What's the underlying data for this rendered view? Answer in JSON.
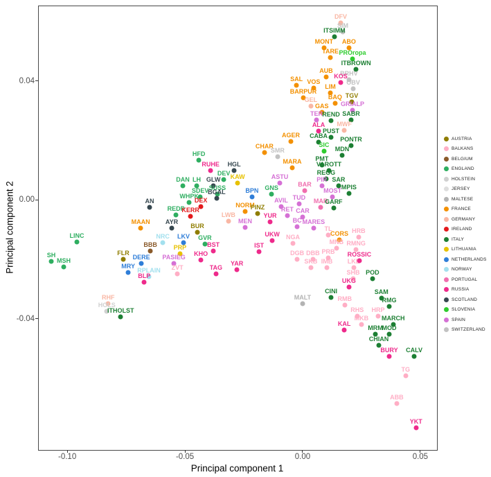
{
  "figure": {
    "xlabel": "Principal component 1",
    "ylabel": "Principal component 2",
    "xlim": [
      -0.1124,
      0.0568
    ],
    "ylim": [
      -0.0839,
      0.0654
    ],
    "x_ticks": [
      -0.1,
      -0.05,
      0.0,
      0.05
    ],
    "y_ticks": [
      -0.04,
      0.0,
      0.04
    ]
  },
  "legend": {
    "items": [
      {
        "label": "AUSTRIA",
        "color": "#8f7d00"
      },
      {
        "label": "BALKANS",
        "color": "#ffaec5"
      },
      {
        "label": "BELGIUM",
        "color": "#8a5a2a"
      },
      {
        "label": "ENGLAND",
        "color": "#2eae60"
      },
      {
        "label": "HOLSTEIN",
        "color": "#d0d0d0"
      },
      {
        "label": "JERSEY",
        "color": "#dedede"
      },
      {
        "label": "MALTESE",
        "color": "#b3b3b3"
      },
      {
        "label": "FRANCE",
        "color": "#f39000"
      },
      {
        "label": "GERMANY",
        "color": "#f9b7a4"
      },
      {
        "label": "IRELAND",
        "color": "#e3191c"
      },
      {
        "label": "ITALY",
        "color": "#1c7f33"
      },
      {
        "label": "LITHUANIA",
        "color": "#e7c100"
      },
      {
        "label": "NETHERLANDS",
        "color": "#2f7ed8"
      },
      {
        "label": "NORWAY",
        "color": "#a3e0ee"
      },
      {
        "label": "PORTUGAL",
        "color": "#f06eae"
      },
      {
        "label": "RUSSIA",
        "color": "#ee2a8b"
      },
      {
        "label": "SCOTLAND",
        "color": "#36474f"
      },
      {
        "label": "SLOVENIA",
        "color": "#2ecc2e"
      },
      {
        "label": "SPAIN",
        "color": "#d570d5"
      },
      {
        "label": "SWITZERLAND",
        "color": "#c2c2c2"
      }
    ]
  },
  "chart_data": {
    "type": "scatter",
    "title": "",
    "xlabel": "Principal component 1",
    "ylabel": "Principal component 2",
    "xlim": [
      -0.1124,
      0.0568
    ],
    "ylim": [
      -0.0839,
      0.0654
    ],
    "grid": false,
    "legend_position": "right",
    "groups": {
      "AUSTRIA": "#8f7d00",
      "BALKANS": "#ffaec5",
      "BELGIUM": "#8a5a2a",
      "ENGLAND": "#2eae60",
      "HOLSTEIN": "#d0d0d0",
      "JERSEY": "#dedede",
      "MALTESE": "#b3b3b3",
      "FRANCE": "#f39000",
      "GERMANY": "#f9b7a4",
      "IRELAND": "#e3191c",
      "ITALY": "#1c7f33",
      "LITHUANIA": "#e7c100",
      "NETHERLANDS": "#2f7ed8",
      "NORWAY": "#a3e0ee",
      "PORTUGAL": "#f06eae",
      "RUSSIA": "#ee2a8b",
      "SCOTLAND": "#36474f",
      "SLOVENIA": "#2ecc2e",
      "SPAIN": "#d570d5",
      "SWITZERLAND": "#c2c2c2"
    },
    "points_format": [
      "label",
      "x",
      "y",
      "group"
    ],
    "points": [
      [
        "DFV",
        0.0159,
        0.0598,
        "GERMANY"
      ],
      [
        "SIM",
        0.0168,
        0.0568,
        "SWITZERLAND"
      ],
      [
        "ITSIMM",
        0.0132,
        0.0552,
        "ITALY"
      ],
      [
        "MONT",
        0.0088,
        0.0514,
        "FRANCE"
      ],
      [
        "ABO",
        0.0194,
        0.0514,
        "FRANCE"
      ],
      [
        "TARE",
        0.0115,
        0.0482,
        "FRANCE"
      ],
      [
        "PROropa",
        0.0209,
        0.0477,
        "SLOVENIA"
      ],
      [
        "ITBROWN",
        0.0224,
        0.0442,
        "ITALY"
      ],
      [
        "AUB",
        0.0097,
        0.0416,
        "FRANCE"
      ],
      [
        "BRHV",
        0.0194,
        0.0407,
        "SWITZERLAND"
      ],
      [
        "SAL",
        -0.0029,
        0.0388,
        "FRANCE"
      ],
      [
        "VOS",
        0.0044,
        0.0379,
        "FRANCE"
      ],
      [
        "KOS",
        0.0159,
        0.0398,
        "RUSSIA"
      ],
      [
        "LIM",
        0.0115,
        0.0363,
        "FRANCE"
      ],
      [
        "OBV",
        0.0212,
        0.0377,
        "SWITZERLAND"
      ],
      [
        "BARPUR",
        0.0,
        0.0346,
        "FRANCE"
      ],
      [
        "BAQ",
        0.0135,
        0.0328,
        "FRANCE"
      ],
      [
        "TGV",
        0.0206,
        0.0332,
        "AUSTRIA"
      ],
      [
        "GEL",
        0.0032,
        0.0318,
        "GERMANY"
      ],
      [
        "GAS",
        0.0079,
        0.0297,
        "FRANCE"
      ],
      [
        "GRIALP",
        0.0209,
        0.0304,
        "SPAIN"
      ],
      [
        "TER",
        0.0056,
        0.0272,
        "SPAIN"
      ],
      [
        "REND",
        0.0118,
        0.0269,
        "ITALY"
      ],
      [
        "SABR",
        0.0203,
        0.0272,
        "ITALY"
      ],
      [
        "MWF",
        0.0174,
        0.0237,
        "GERMANY"
      ],
      [
        "ALA",
        0.0065,
        0.0234,
        "RUSSIA"
      ],
      [
        "PUST",
        0.0118,
        0.0213,
        "ITALY"
      ],
      [
        "CABA",
        0.0065,
        0.0197,
        "ITALY"
      ],
      [
        "PONTR",
        0.0203,
        0.0185,
        "ITALY"
      ],
      [
        "SIC",
        0.0088,
        0.0167,
        "SLOVENIA"
      ],
      [
        "MDN",
        0.0165,
        0.0153,
        "ITALY"
      ],
      [
        "AGER",
        -0.0053,
        0.0199,
        "FRANCE"
      ],
      [
        "CHAR",
        -0.0165,
        0.0162,
        "FRANCE"
      ],
      [
        "SMR",
        -0.0109,
        0.0148,
        "SWITZERLAND"
      ],
      [
        "MARA",
        -0.0047,
        0.0111,
        "FRANCE"
      ],
      [
        "PMT",
        0.0079,
        0.012,
        "ITALY"
      ],
      [
        "VAROTT",
        0.0109,
        0.0101,
        "ITALY"
      ],
      [
        "REGG",
        0.0097,
        0.0073,
        "ITALY"
      ],
      [
        "HFD",
        -0.0444,
        0.0136,
        "ENGLAND"
      ],
      [
        "RUHE",
        -0.0394,
        0.0101,
        "RUSSIA"
      ],
      [
        "HGL",
        -0.0294,
        0.0101,
        "SCOTLAND"
      ],
      [
        "DAN",
        -0.0512,
        0.005,
        "ENGLAND"
      ],
      [
        "LH",
        -0.0453,
        0.005,
        "ENGLAND"
      ],
      [
        "GLW",
        -0.0382,
        0.005,
        "SCOTLAND"
      ],
      [
        "DEV",
        -0.0338,
        0.0071,
        "ENGLAND"
      ],
      [
        "KAW",
        -0.0279,
        0.0059,
        "LITHUANIA"
      ],
      [
        "SUSS",
        -0.0365,
        0.0022,
        "ENGLAND"
      ],
      [
        "SDEV",
        -0.0438,
        0.0013,
        "ENGLAND"
      ],
      [
        "DEX",
        -0.0435,
        -0.002,
        "IRELAND"
      ],
      [
        "BGAL",
        -0.0368,
        0.0008,
        "SCOTLAND"
      ],
      [
        "WHPK",
        -0.0485,
        -0.0006,
        "ENGLAND"
      ],
      [
        "AN",
        -0.0653,
        -0.0022,
        "SCOTLAND"
      ],
      [
        "REDP",
        -0.0541,
        -0.0048,
        "ENGLAND"
      ],
      [
        "KERR",
        -0.0479,
        -0.0052,
        "IRELAND"
      ],
      [
        "BPN",
        -0.0218,
        0.0013,
        "NETHERLANDS"
      ],
      [
        "GNS",
        -0.0135,
        0.0022,
        "ENGLAND"
      ],
      [
        "NORM",
        -0.0247,
        -0.0036,
        "FRANCE"
      ],
      [
        "PINZ",
        -0.0194,
        -0.0043,
        "AUSTRIA"
      ],
      [
        "LWB",
        -0.0318,
        -0.0069,
        "GERMANY"
      ],
      [
        "MEN",
        -0.0247,
        -0.009,
        "SPAIN"
      ],
      [
        "AVIL",
        -0.0094,
        -0.002,
        "SPAIN"
      ],
      [
        "TUD",
        -0.0018,
        -0.001,
        "SPAIN"
      ],
      [
        "BAR",
        0.0006,
        0.0034,
        "PORTUGAL"
      ],
      [
        "ASTU",
        -0.01,
        0.0059,
        "SPAIN"
      ],
      [
        "PIR",
        0.0079,
        0.005,
        "SPAIN"
      ],
      [
        "SAR",
        0.015,
        0.005,
        "ITALY"
      ],
      [
        "MPIS",
        0.0194,
        0.0024,
        "ITALY"
      ],
      [
        "MOST",
        0.0124,
        0.0013,
        "SPAIN"
      ],
      [
        "MAR",
        0.0074,
        -0.0022,
        "PORTUGAL"
      ],
      [
        "GARF",
        0.0129,
        -0.0024,
        "ITALY"
      ],
      [
        "RET",
        -0.0068,
        -0.005,
        "SPAIN"
      ],
      [
        "CAR",
        -0.0003,
        -0.0055,
        "SPAIN"
      ],
      [
        "YUR",
        -0.0141,
        -0.0071,
        "RUSSIA"
      ],
      [
        "BC",
        -0.0026,
        -0.0087,
        "SPAIN"
      ],
      [
        "MARES",
        0.0044,
        -0.0092,
        "SPAIN"
      ],
      [
        "TL",
        0.0106,
        -0.0115,
        "BALKANS"
      ],
      [
        "CORS",
        0.0153,
        -0.0132,
        "FRANCE"
      ],
      [
        "UKW",
        -0.0132,
        -0.0134,
        "RUSSIA"
      ],
      [
        "NGA",
        -0.0044,
        -0.0143,
        "BALKANS"
      ],
      [
        "IST",
        -0.0188,
        -0.0171,
        "RUSSIA"
      ],
      [
        "HRB",
        0.0235,
        -0.0122,
        "BALKANS"
      ],
      [
        "MNB",
        0.0141,
        -0.016,
        "BALKANS"
      ],
      [
        "RMNG",
        0.0224,
        -0.0164,
        "BALKANS"
      ],
      [
        "DGB",
        -0.0026,
        -0.0197,
        "BALKANS"
      ],
      [
        "DBB",
        0.0041,
        -0.0197,
        "BALKANS"
      ],
      [
        "PRB",
        0.0106,
        -0.0192,
        "BALKANS"
      ],
      [
        "SKB",
        0.0032,
        -0.0225,
        "BALKANS"
      ],
      [
        "IMB",
        0.01,
        -0.0225,
        "BALKANS"
      ],
      [
        "LKB",
        0.0215,
        -0.0225,
        "BALKANS"
      ],
      [
        "ROSSIC",
        0.0238,
        -0.0202,
        "RUSSIA"
      ],
      [
        "SHB",
        0.0212,
        -0.0262,
        "BALKANS"
      ],
      [
        "POD",
        0.0294,
        -0.0262,
        "ITALY"
      ],
      [
        "UKG",
        0.0194,
        -0.029,
        "RUSSIA"
      ],
      [
        "CINI",
        0.0118,
        -0.0325,
        "ITALY"
      ],
      [
        "RMB",
        0.0176,
        -0.0351,
        "BALKANS"
      ],
      [
        "SAM",
        0.0332,
        -0.0328,
        "ITALY"
      ],
      [
        "RMG",
        0.0365,
        -0.0356,
        "ITALY"
      ],
      [
        "RHS",
        0.0229,
        -0.0388,
        "BALKANS"
      ],
      [
        "HRP",
        0.0318,
        -0.0388,
        "BALKANS"
      ],
      [
        "MKB",
        0.0247,
        -0.0416,
        "BALKANS"
      ],
      [
        "MARCH",
        0.0382,
        -0.0416,
        "ITALY"
      ],
      [
        "MOD",
        0.0365,
        -0.0449,
        "ITALY"
      ],
      [
        "MRM",
        0.0306,
        -0.0449,
        "ITALY"
      ],
      [
        "KAL",
        0.0174,
        -0.0435,
        "RUSSIA"
      ],
      [
        "CHIAN",
        0.0321,
        -0.0486,
        "ITALY"
      ],
      [
        "BURY",
        0.0365,
        -0.0524,
        "RUSSIA"
      ],
      [
        "CALV",
        0.0471,
        -0.0524,
        "ITALY"
      ],
      [
        "TG",
        0.0435,
        -0.0589,
        "BALKANS"
      ],
      [
        "ABB",
        0.0397,
        -0.0682,
        "BALKANS"
      ],
      [
        "YKT",
        0.0479,
        -0.0764,
        "RUSSIA"
      ],
      [
        "MALT",
        -0.0003,
        -0.0346,
        "MALTESE"
      ],
      [
        "LINC",
        -0.0962,
        -0.0139,
        "ENGLAND"
      ],
      [
        "SH",
        -0.1071,
        -0.0204,
        "ENGLAND"
      ],
      [
        "MSH",
        -0.1018,
        -0.0223,
        "ENGLAND"
      ],
      [
        "MAAN",
        -0.0691,
        -0.0092,
        "FRANCE"
      ],
      [
        "AYR",
        -0.0559,
        -0.0092,
        "SCOTLAND"
      ],
      [
        "BUR",
        -0.045,
        -0.0106,
        "AUSTRIA"
      ],
      [
        "NRC",
        -0.0597,
        -0.0141,
        "NORWAY"
      ],
      [
        "LKV",
        -0.0509,
        -0.0141,
        "NETHERLANDS"
      ],
      [
        "GVR",
        -0.0418,
        -0.0146,
        "ENGLAND"
      ],
      [
        "BBB",
        -0.065,
        -0.0169,
        "BELGIUM"
      ],
      [
        "PRP",
        -0.0524,
        -0.0178,
        "LITHUANIA"
      ],
      [
        "BST",
        -0.0382,
        -0.0169,
        "RUSSIA"
      ],
      [
        "FLR",
        -0.0765,
        -0.0197,
        "AUSTRIA"
      ],
      [
        "DERE",
        -0.0688,
        -0.0211,
        "NETHERLANDS"
      ],
      [
        "PASIEG",
        -0.055,
        -0.0211,
        "SPAIN"
      ],
      [
        "KHO",
        -0.0435,
        -0.0199,
        "RUSSIA"
      ],
      [
        "MRY",
        -0.0744,
        -0.0241,
        "NETHERLANDS"
      ],
      [
        "RPLAIN",
        -0.0656,
        -0.0255,
        "NORWAY"
      ],
      [
        "ZVT",
        -0.0535,
        -0.0246,
        "BALKANS"
      ],
      [
        "TAG",
        -0.0371,
        -0.0246,
        "RUSSIA"
      ],
      [
        "YAR",
        -0.0282,
        -0.0232,
        "RUSSIA"
      ],
      [
        "BLP",
        -0.0676,
        -0.0274,
        "RUSSIA"
      ],
      [
        "RHF",
        -0.0829,
        -0.0346,
        "GERMANY"
      ],
      [
        "HOLS",
        -0.0835,
        -0.0372,
        "HOLSTEIN"
      ],
      [
        "ITHOLST",
        -0.0776,
        -0.0391,
        "ITALY"
      ]
    ]
  }
}
